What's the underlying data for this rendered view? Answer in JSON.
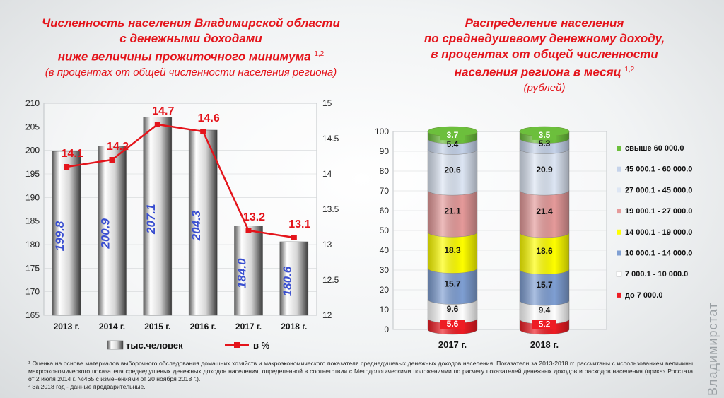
{
  "left": {
    "title_lines": [
      "Численность населения  Владимирской области",
      "с денежными доходами",
      "ниже величины прожиточного минимума"
    ],
    "title_sup": "1,2",
    "subtitle": "(в процентах от общей численности населения региона)",
    "legend": {
      "bars": "тыс.человек",
      "line": "в %"
    }
  },
  "right": {
    "title_lines": [
      "Распределение  населения",
      "по среднедушевому денежному доходу,",
      "в процентах от общей численности",
      "населения региона в месяц"
    ],
    "title_sup": "1,2",
    "subtitle": "(рублей)"
  },
  "footnotes": [
    "¹ Оценка на основе материалов выборочного обследования домашних хозяйств и макроэкономического показателя среднедушевых денежных доходов населения. Показатели за 2013-2018 гг. рассчитаны с использованием величины макроэкономического показателя среднедушевых денежных доходов населения, определенной в соответствии с Методологическими положениями по расчету показателей денежных доходов и расходов населения (приказ Росстата от 2 июля 2014 г. №465 с изменениями от 20 ноября 2018 г.).",
    "²  За 2018 год  - данные предварительные."
  ],
  "watermark": "Владимирстат",
  "chart_data": [
    {
      "type": "bar",
      "categories": [
        "2013 г.",
        "2014 г.",
        "2015 г.",
        "2016 г.",
        "2017 г.",
        "2018 г."
      ],
      "series": [
        {
          "name": "тыс.человек",
          "values": [
            199.8,
            200.9,
            207.1,
            204.3,
            184.0,
            180.6
          ],
          "labels": [
            "199.8",
            "200.9",
            "207.1",
            "204.3",
            "184.0",
            "180.6"
          ],
          "axis": "left"
        },
        {
          "name": "в %",
          "type": "line",
          "values": [
            14.1,
            14.2,
            14.7,
            14.6,
            13.2,
            13.1
          ],
          "labels": [
            "14.1",
            "14.2",
            "14.7",
            "14.6",
            "13.2",
            "13.1"
          ],
          "axis": "right",
          "color": "#e4141b"
        }
      ],
      "ylim": [
        165,
        210
      ],
      "yticks": [
        "165",
        "170",
        "175",
        "180",
        "185",
        "190",
        "195",
        "200",
        "205",
        "210"
      ],
      "y2lim": [
        12,
        15
      ],
      "y2ticks": [
        "12",
        "12.5",
        "13",
        "13.5",
        "14",
        "14.5",
        "15"
      ],
      "bar_label_color": "#3a4fd0",
      "legend": "bottom"
    },
    {
      "type": "bar",
      "stacked": true,
      "categories": [
        "2017 г.",
        "2018 г."
      ],
      "series": [
        {
          "name": "до 7 000.0",
          "values": [
            5.6,
            5.2
          ],
          "labels": [
            "5.6",
            "5.2"
          ],
          "color": "#ee1c24"
        },
        {
          "name": "7 000.1 - 10 000.0",
          "values": [
            9.6,
            9.4
          ],
          "labels": [
            "9.6",
            "9.4"
          ],
          "color": "#ffffff"
        },
        {
          "name": "10 000.1 - 14 000.0",
          "values": [
            15.7,
            15.7
          ],
          "labels": [
            "15.7",
            "15.7"
          ],
          "color": "#7f9fd3"
        },
        {
          "name": "14 000.1 - 19 000.0",
          "values": [
            18.3,
            18.6
          ],
          "labels": [
            "18.3",
            "18.6"
          ],
          "color": "#ffff00"
        },
        {
          "name": "19 000.1 - 27 000.0",
          "values": [
            21.1,
            21.4
          ],
          "labels": [
            "21.1",
            "21.4"
          ],
          "color": "#e59a9a"
        },
        {
          "name": "27 000.1 - 45 000.0",
          "values": [
            20.6,
            20.9
          ],
          "labels": [
            "20.6",
            "20.9"
          ],
          "color": "#dde6f4"
        },
        {
          "name": "45 000.1 - 60 000.0",
          "values": [
            5.4,
            5.3
          ],
          "labels": [
            "5.4",
            "5.3"
          ],
          "color": "#c5d3ea"
        },
        {
          "name": "свыше 60 000.0",
          "values": [
            3.7,
            3.5
          ],
          "labels": [
            "3.7",
            "3.5"
          ],
          "color": "#6cbf3c"
        }
      ],
      "ylim": [
        0,
        100
      ],
      "yticks": [
        "0",
        "10",
        "20",
        "30",
        "40",
        "50",
        "60",
        "70",
        "80",
        "90",
        "100"
      ],
      "legend": "right"
    }
  ]
}
